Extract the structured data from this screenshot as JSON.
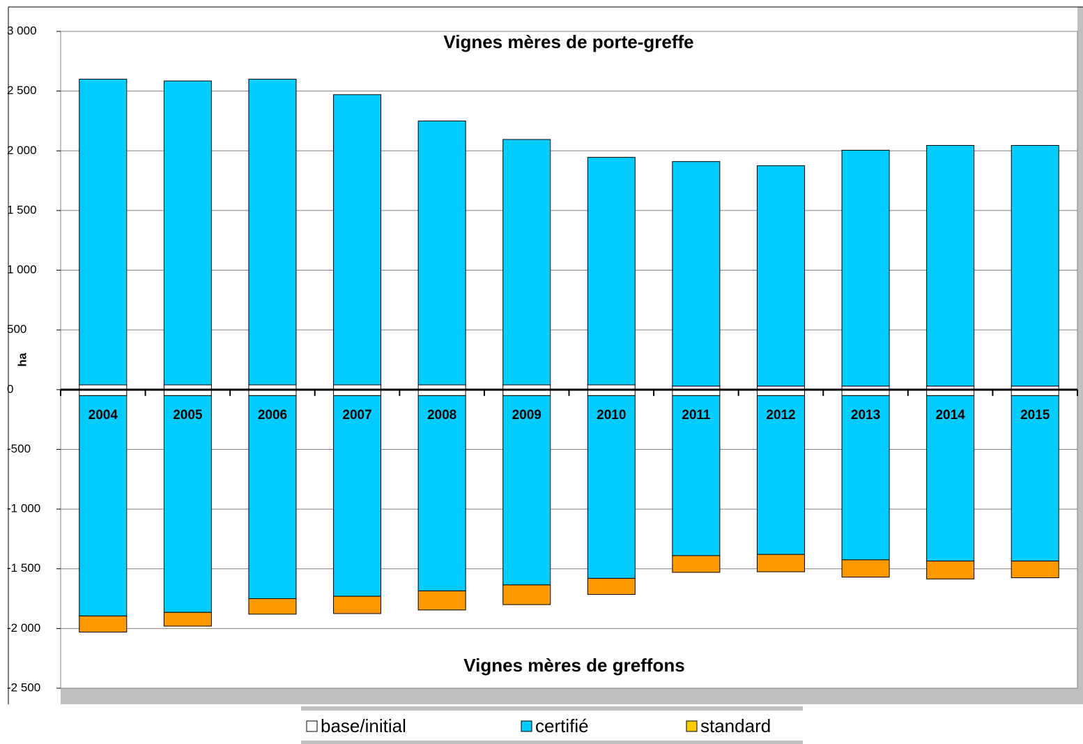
{
  "chart_data": {
    "type": "bar",
    "y_axis_label": "ha",
    "annotations": [
      "Vignes mères de porte-greffe",
      "Vignes mères de greffons"
    ],
    "categories": [
      "2004",
      "2005",
      "2006",
      "2007",
      "2008",
      "2009",
      "2010",
      "2011",
      "2012",
      "2013",
      "2014",
      "2015"
    ],
    "series": [
      {
        "name": "base/initial",
        "color": "#ffffff",
        "values": [
          40,
          40,
          40,
          40,
          40,
          40,
          40,
          30,
          30,
          30,
          30,
          30
        ],
        "values_below": [
          -50,
          -50,
          -50,
          -50,
          -50,
          -50,
          -50,
          -50,
          -50,
          -50,
          -50,
          -50
        ]
      },
      {
        "name": "certifié",
        "color": "#00ccff",
        "values": [
          2560,
          2545,
          2560,
          2430,
          2210,
          2055,
          1905,
          1880,
          1845,
          1975,
          2015,
          2015
        ],
        "values_below": [
          -1845,
          -1815,
          -1700,
          -1680,
          -1635,
          -1585,
          -1530,
          -1340,
          -1330,
          -1375,
          -1385,
          -1385
        ]
      },
      {
        "name": "standard",
        "color": "#ff9900",
        "values": [
          0,
          0,
          0,
          0,
          0,
          0,
          0,
          0,
          0,
          0,
          0,
          0
        ],
        "values_below": [
          -135,
          -115,
          -130,
          -145,
          -160,
          -165,
          -135,
          -140,
          -145,
          -145,
          -150,
          -140
        ]
      }
    ],
    "ylim": [
      -2500,
      3000
    ],
    "yticks": [
      {
        "value": 3000,
        "label": "3 000"
      },
      {
        "value": 2500,
        "label": "2 500"
      },
      {
        "value": 2000,
        "label": "2 000"
      },
      {
        "value": 1500,
        "label": "1 500"
      },
      {
        "value": 1000,
        "label": "1 000"
      },
      500,
      0,
      -500,
      {
        "value": -1000,
        "label": "-1 000"
      },
      {
        "value": -1500,
        "label": "-1 500"
      },
      {
        "value": -2000,
        "label": "-2 000"
      },
      {
        "value": -2500,
        "label": "-2 500"
      }
    ],
    "grid": true,
    "legend": "bottom"
  }
}
